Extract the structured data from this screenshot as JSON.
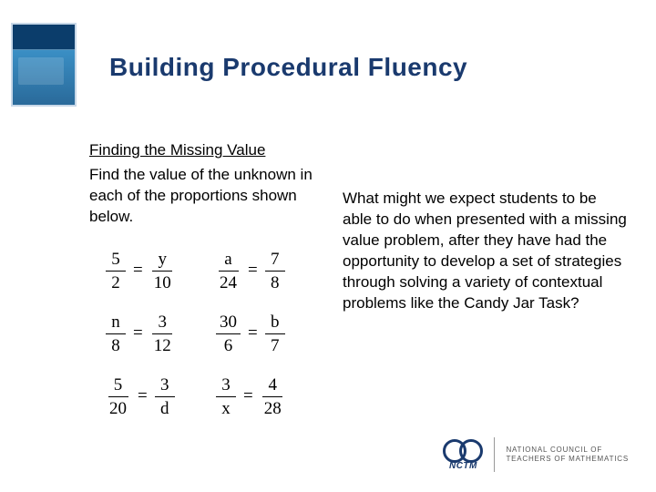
{
  "title": "Building Procedural Fluency",
  "subtitle": "Finding the Missing Value",
  "instruction": "Find the value of the unknown in each of the proportions shown below.",
  "question": "What might we expect students to be able to do when presented with a missing value problem, after they have had the opportunity to develop a set of strategies through solving a variety of contextual problems like the Candy Jar Task?",
  "proportions": [
    {
      "a_num": "5",
      "a_den": "2",
      "b_num": "y",
      "b_den": "10"
    },
    {
      "a_num": "a",
      "a_den": "24",
      "b_num": "7",
      "b_den": "8"
    },
    {
      "a_num": "n",
      "a_den": "8",
      "b_num": "3",
      "b_den": "12"
    },
    {
      "a_num": "30",
      "a_den": "6",
      "b_num": "b",
      "b_den": "7"
    },
    {
      "a_num": "5",
      "a_den": "20",
      "b_num": "3",
      "b_den": "d"
    },
    {
      "a_num": "3",
      "a_den": "x",
      "b_num": "4",
      "b_den": "28"
    }
  ],
  "footer": {
    "abbr": "NCTM",
    "org_line1": "NATIONAL COUNCIL OF",
    "org_line2": "TEACHERS OF MATHEMATICS"
  },
  "colors": {
    "title": "#1a3a6e",
    "text": "#000000",
    "background": "#ffffff"
  }
}
